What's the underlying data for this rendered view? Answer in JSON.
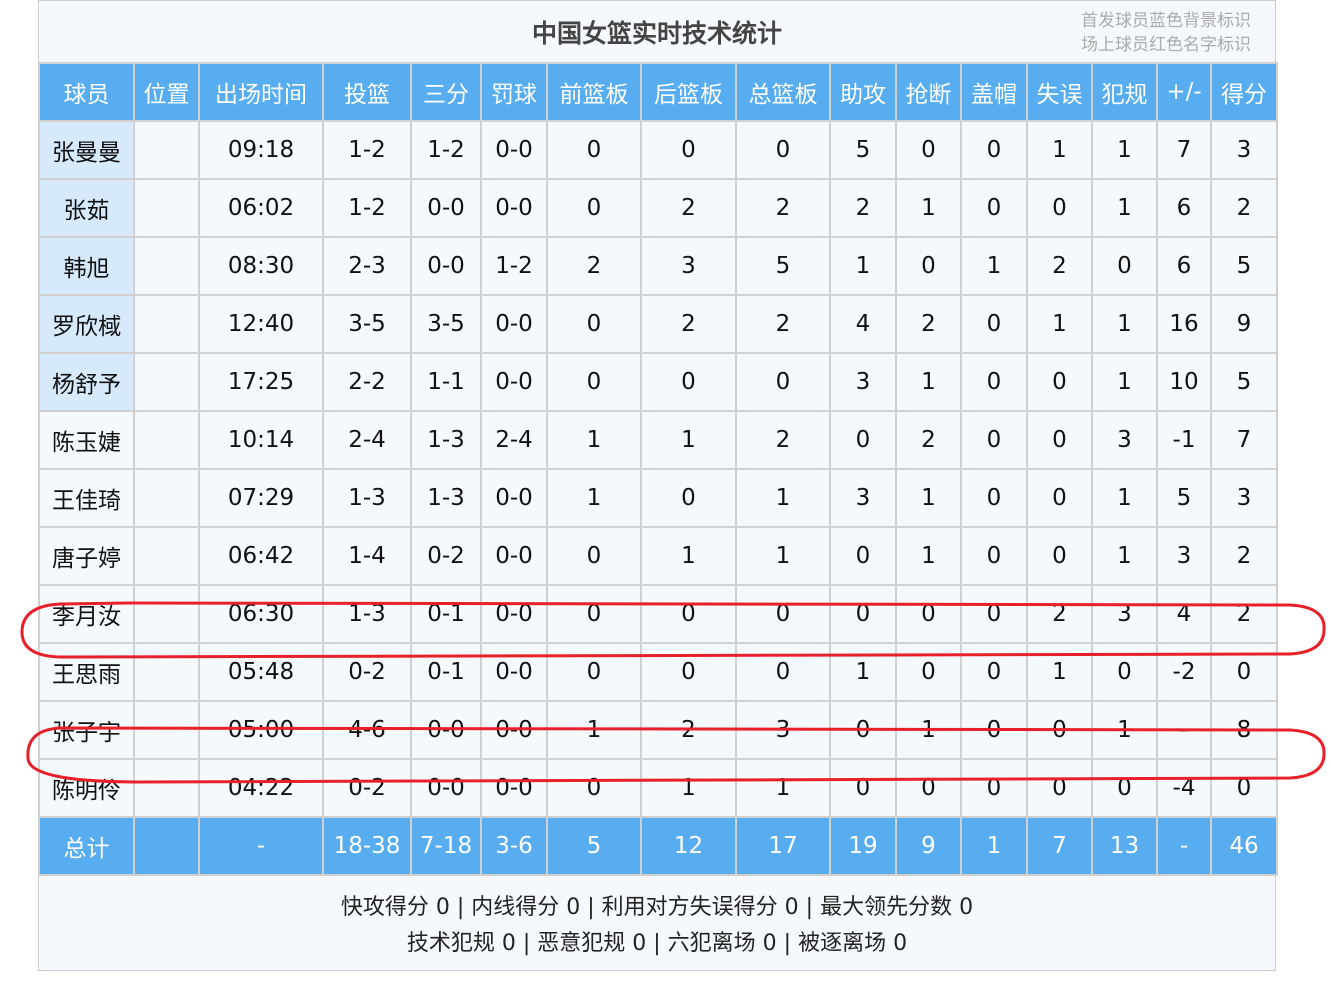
{
  "title": "中国女篮实时技术统计",
  "legend": [
    "首发球员蓝色背景标识",
    "场上球员红色名字标识"
  ],
  "columns": [
    "球员",
    "位置",
    "出场时间",
    "投篮",
    "三分",
    "罚球",
    "前篮板",
    "后篮板",
    "总篮板",
    "助攻",
    "抢断",
    "盖帽",
    "失误",
    "犯规",
    "+/-",
    "得分"
  ],
  "rows": [
    {
      "starter": true,
      "cells": [
        "张曼曼",
        "",
        "09:18",
        "1-2",
        "1-2",
        "0-0",
        "0",
        "0",
        "0",
        "5",
        "0",
        "0",
        "1",
        "1",
        "7",
        "3"
      ]
    },
    {
      "starter": true,
      "cells": [
        "张茹",
        "",
        "06:02",
        "1-2",
        "0-0",
        "0-0",
        "0",
        "2",
        "2",
        "2",
        "1",
        "0",
        "0",
        "1",
        "6",
        "2"
      ]
    },
    {
      "starter": true,
      "cells": [
        "韩旭",
        "",
        "08:30",
        "2-3",
        "0-0",
        "1-2",
        "2",
        "3",
        "5",
        "1",
        "0",
        "1",
        "2",
        "0",
        "6",
        "5"
      ]
    },
    {
      "starter": true,
      "cells": [
        "罗欣棫",
        "",
        "12:40",
        "3-5",
        "3-5",
        "0-0",
        "0",
        "2",
        "2",
        "4",
        "2",
        "0",
        "1",
        "1",
        "16",
        "9"
      ]
    },
    {
      "starter": true,
      "cells": [
        "杨舒予",
        "",
        "17:25",
        "2-2",
        "1-1",
        "0-0",
        "0",
        "0",
        "0",
        "3",
        "1",
        "0",
        "0",
        "1",
        "10",
        "5"
      ]
    },
    {
      "starter": false,
      "cells": [
        "陈玉婕",
        "",
        "10:14",
        "2-4",
        "1-3",
        "2-4",
        "1",
        "1",
        "2",
        "0",
        "2",
        "0",
        "0",
        "3",
        "-1",
        "7"
      ]
    },
    {
      "starter": false,
      "cells": [
        "王佳琦",
        "",
        "07:29",
        "1-3",
        "1-3",
        "0-0",
        "1",
        "0",
        "1",
        "3",
        "1",
        "0",
        "0",
        "1",
        "5",
        "3"
      ]
    },
    {
      "starter": false,
      "cells": [
        "唐子婷",
        "",
        "06:42",
        "1-4",
        "0-2",
        "0-0",
        "0",
        "1",
        "1",
        "0",
        "1",
        "0",
        "0",
        "1",
        "3",
        "2"
      ]
    },
    {
      "starter": false,
      "cells": [
        "李月汝",
        "",
        "06:30",
        "1-3",
        "0-1",
        "0-0",
        "0",
        "0",
        "0",
        "0",
        "0",
        "0",
        "2",
        "3",
        "4",
        "2"
      ]
    },
    {
      "starter": false,
      "cells": [
        "王思雨",
        "",
        "05:48",
        "0-2",
        "0-1",
        "0-0",
        "0",
        "0",
        "0",
        "1",
        "0",
        "0",
        "1",
        "0",
        "-2",
        "0"
      ]
    },
    {
      "starter": false,
      "cells": [
        "张子宇",
        "",
        "05:00",
        "4-6",
        "0-0",
        "0-0",
        "1",
        "2",
        "3",
        "0",
        "1",
        "0",
        "0",
        "1",
        "-",
        "8"
      ]
    },
    {
      "starter": false,
      "cells": [
        "陈明伶",
        "",
        "04:22",
        "0-2",
        "0-0",
        "0-0",
        "0",
        "1",
        "1",
        "0",
        "0",
        "0",
        "0",
        "0",
        "-4",
        "0"
      ]
    }
  ],
  "total": [
    "总计",
    "",
    "-",
    "18-38",
    "7-18",
    "3-6",
    "5",
    "12",
    "17",
    "19",
    "9",
    "1",
    "7",
    "13",
    "-",
    "46"
  ],
  "footer": [
    "快攻得分 0 | 内线得分 0 | 利用对方失误得分 0 | 最大领先分数 0",
    "技术犯规 0 | 恶意犯规 0 | 六犯离场 0 | 被逐离场 0"
  ],
  "colors": {
    "header": "#57adf0",
    "starter": "#d6eafc",
    "annotation": "#e8202a"
  }
}
